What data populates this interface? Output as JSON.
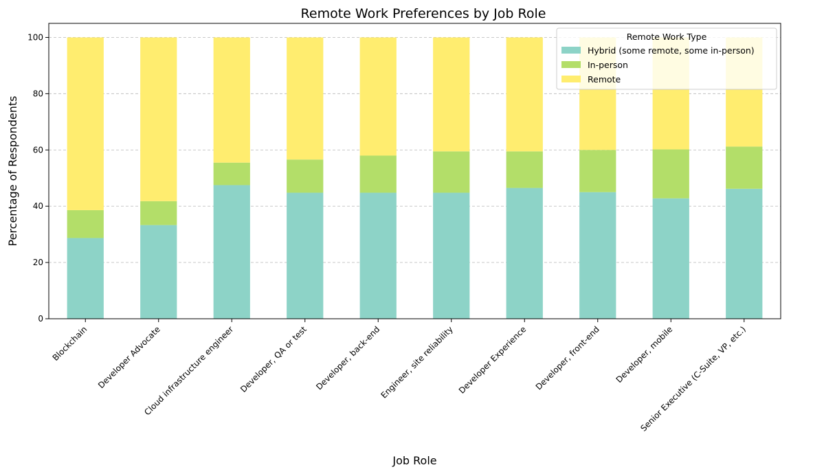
{
  "chart_data": {
    "type": "bar",
    "stacked": true,
    "title": "Remote Work Preferences by Job Role",
    "xlabel": "Job Role",
    "ylabel": "Percentage of Respondents",
    "ylim": [
      0,
      105
    ],
    "yticks": [
      0,
      20,
      40,
      60,
      80,
      100
    ],
    "grid": "y-dashed",
    "legend": {
      "title": "Remote Work Type",
      "placement": "top-right"
    },
    "categories": [
      "Blockchain",
      "Developer Advocate",
      "Cloud infrastructure engineer",
      "Developer, QA or test",
      "Developer, back-end",
      "Engineer, site reliability",
      "Developer Experience",
      "Developer, front-end",
      "Developer, mobile",
      "Senior Executive (C-Suite, VP, etc.)"
    ],
    "series": [
      {
        "name": "Hybrid (some remote, some in-person)",
        "color": "#8dd3c7",
        "values": [
          28.7,
          33.3,
          47.5,
          44.8,
          44.8,
          44.8,
          46.5,
          45.0,
          42.8,
          46.2
        ]
      },
      {
        "name": "In-person",
        "color": "#b3de69",
        "values": [
          9.9,
          8.5,
          8.0,
          11.8,
          13.2,
          14.7,
          13.0,
          15.0,
          17.4,
          15.0
        ]
      },
      {
        "name": "Remote",
        "color": "#ffed6f",
        "values": [
          61.4,
          58.2,
          44.5,
          43.4,
          42.0,
          40.5,
          40.5,
          40.0,
          39.8,
          38.8
        ]
      }
    ]
  }
}
